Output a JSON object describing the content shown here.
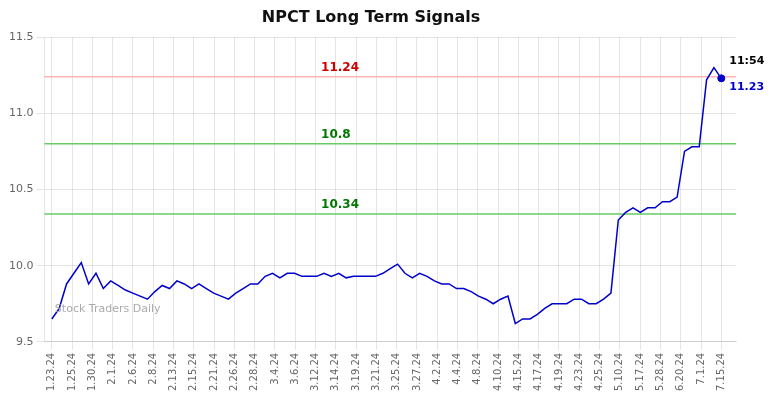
{
  "chart_data": {
    "type": "line",
    "title": "NPCT Long Term Signals",
    "values": [
      9.65,
      9.72,
      9.88,
      9.95,
      10.02,
      9.88,
      9.95,
      9.85,
      9.9,
      9.87,
      9.84,
      9.82,
      9.8,
      9.78,
      9.83,
      9.87,
      9.85,
      9.9,
      9.88,
      9.85,
      9.88,
      9.85,
      9.82,
      9.8,
      9.78,
      9.82,
      9.85,
      9.88,
      9.88,
      9.93,
      9.95,
      9.92,
      9.95,
      9.95,
      9.93,
      9.93,
      9.93,
      9.95,
      9.93,
      9.95,
      9.92,
      9.93,
      9.93,
      9.93,
      9.93,
      9.95,
      9.98,
      10.01,
      9.95,
      9.92,
      9.95,
      9.93,
      9.9,
      9.88,
      9.88,
      9.85,
      9.85,
      9.83,
      9.8,
      9.78,
      9.75,
      9.78,
      9.8,
      9.62,
      9.65,
      9.65,
      9.68,
      9.72,
      9.75,
      9.75,
      9.75,
      9.78,
      9.78,
      9.75,
      9.75,
      9.78,
      9.82,
      10.3,
      10.35,
      10.38,
      10.35,
      10.38,
      10.38,
      10.42,
      10.42,
      10.45,
      10.75,
      10.78,
      10.78,
      11.22,
      11.3,
      11.23
    ],
    "color": "#0000cc",
    "xlim": [
      -1,
      93
    ],
    "xticks": [
      {
        "value": 0,
        "label": "1.23.24"
      },
      {
        "value": 2.757576,
        "label": "1.25.24"
      },
      {
        "value": 5.515152,
        "label": "1.30.24"
      },
      {
        "value": 8.272727,
        "label": "2.1.24"
      },
      {
        "value": 11.030303,
        "label": "2.6.24"
      },
      {
        "value": 13.787879,
        "label": "2.8.24"
      },
      {
        "value": 16.545455,
        "label": "2.13.24"
      },
      {
        "value": 19.30303,
        "label": "2.15.24"
      },
      {
        "value": 22.060606,
        "label": "2.21.24"
      },
      {
        "value": 24.818182,
        "label": "2.26.24"
      },
      {
        "value": 27.575758,
        "label": "2.28.24"
      },
      {
        "value": 30.333333,
        "label": "3.4.24"
      },
      {
        "value": 33.090909,
        "label": "3.6.24"
      },
      {
        "value": 35.848485,
        "label": "3.12.24"
      },
      {
        "value": 38.606061,
        "label": "3.14.24"
      },
      {
        "value": 41.363636,
        "label": "3.19.24"
      },
      {
        "value": 44.121212,
        "label": "3.21.24"
      },
      {
        "value": 46.878788,
        "label": "3.25.24"
      },
      {
        "value": 49.636364,
        "label": "3.27.24"
      },
      {
        "value": 52.393939,
        "label": "4.2.24"
      },
      {
        "value": 55.151515,
        "label": "4.4.24"
      },
      {
        "value": 57.909091,
        "label": "4.8.24"
      },
      {
        "value": 60.666667,
        "label": "4.10.24"
      },
      {
        "value": 63.424242,
        "label": "4.15.24"
      },
      {
        "value": 66.181818,
        "label": "4.17.24"
      },
      {
        "value": 68.939394,
        "label": "4.19.24"
      },
      {
        "value": 71.69697,
        "label": "4.23.24"
      },
      {
        "value": 74.454545,
        "label": "4.25.24"
      },
      {
        "value": 77.212121,
        "label": "5.10.24"
      },
      {
        "value": 79.969697,
        "label": "5.17.24"
      },
      {
        "value": 82.727273,
        "label": "5.28.24"
      },
      {
        "value": 85.484848,
        "label": "6.20.24"
      },
      {
        "value": 88.242424,
        "label": "7.1.24"
      },
      {
        "value": 91,
        "label": "7.15.24"
      }
    ],
    "ylim": [
      9.5,
      11.5
    ],
    "yticks": [
      9.5,
      {
        "value": 10,
        "label": "10.0"
      },
      10.5,
      {
        "value": 11,
        "label": "11.0"
      },
      11.5
    ],
    "grid": true,
    "reference_lines": [
      {
        "value": 11.24,
        "label": "11.24",
        "color": "#ffb3b3",
        "label_color": "#cc0000"
      },
      {
        "value": 10.8,
        "label": "10.8",
        "color": "#66cc66",
        "label_color": "#007700"
      },
      {
        "value": 10.34,
        "label": "10.34",
        "color": "#66cc66",
        "label_color": "#007700"
      }
    ],
    "last_point": {
      "value": 11.23,
      "label": "11.23",
      "time": "11:54"
    },
    "watermark": "Stock Traders Daily"
  }
}
